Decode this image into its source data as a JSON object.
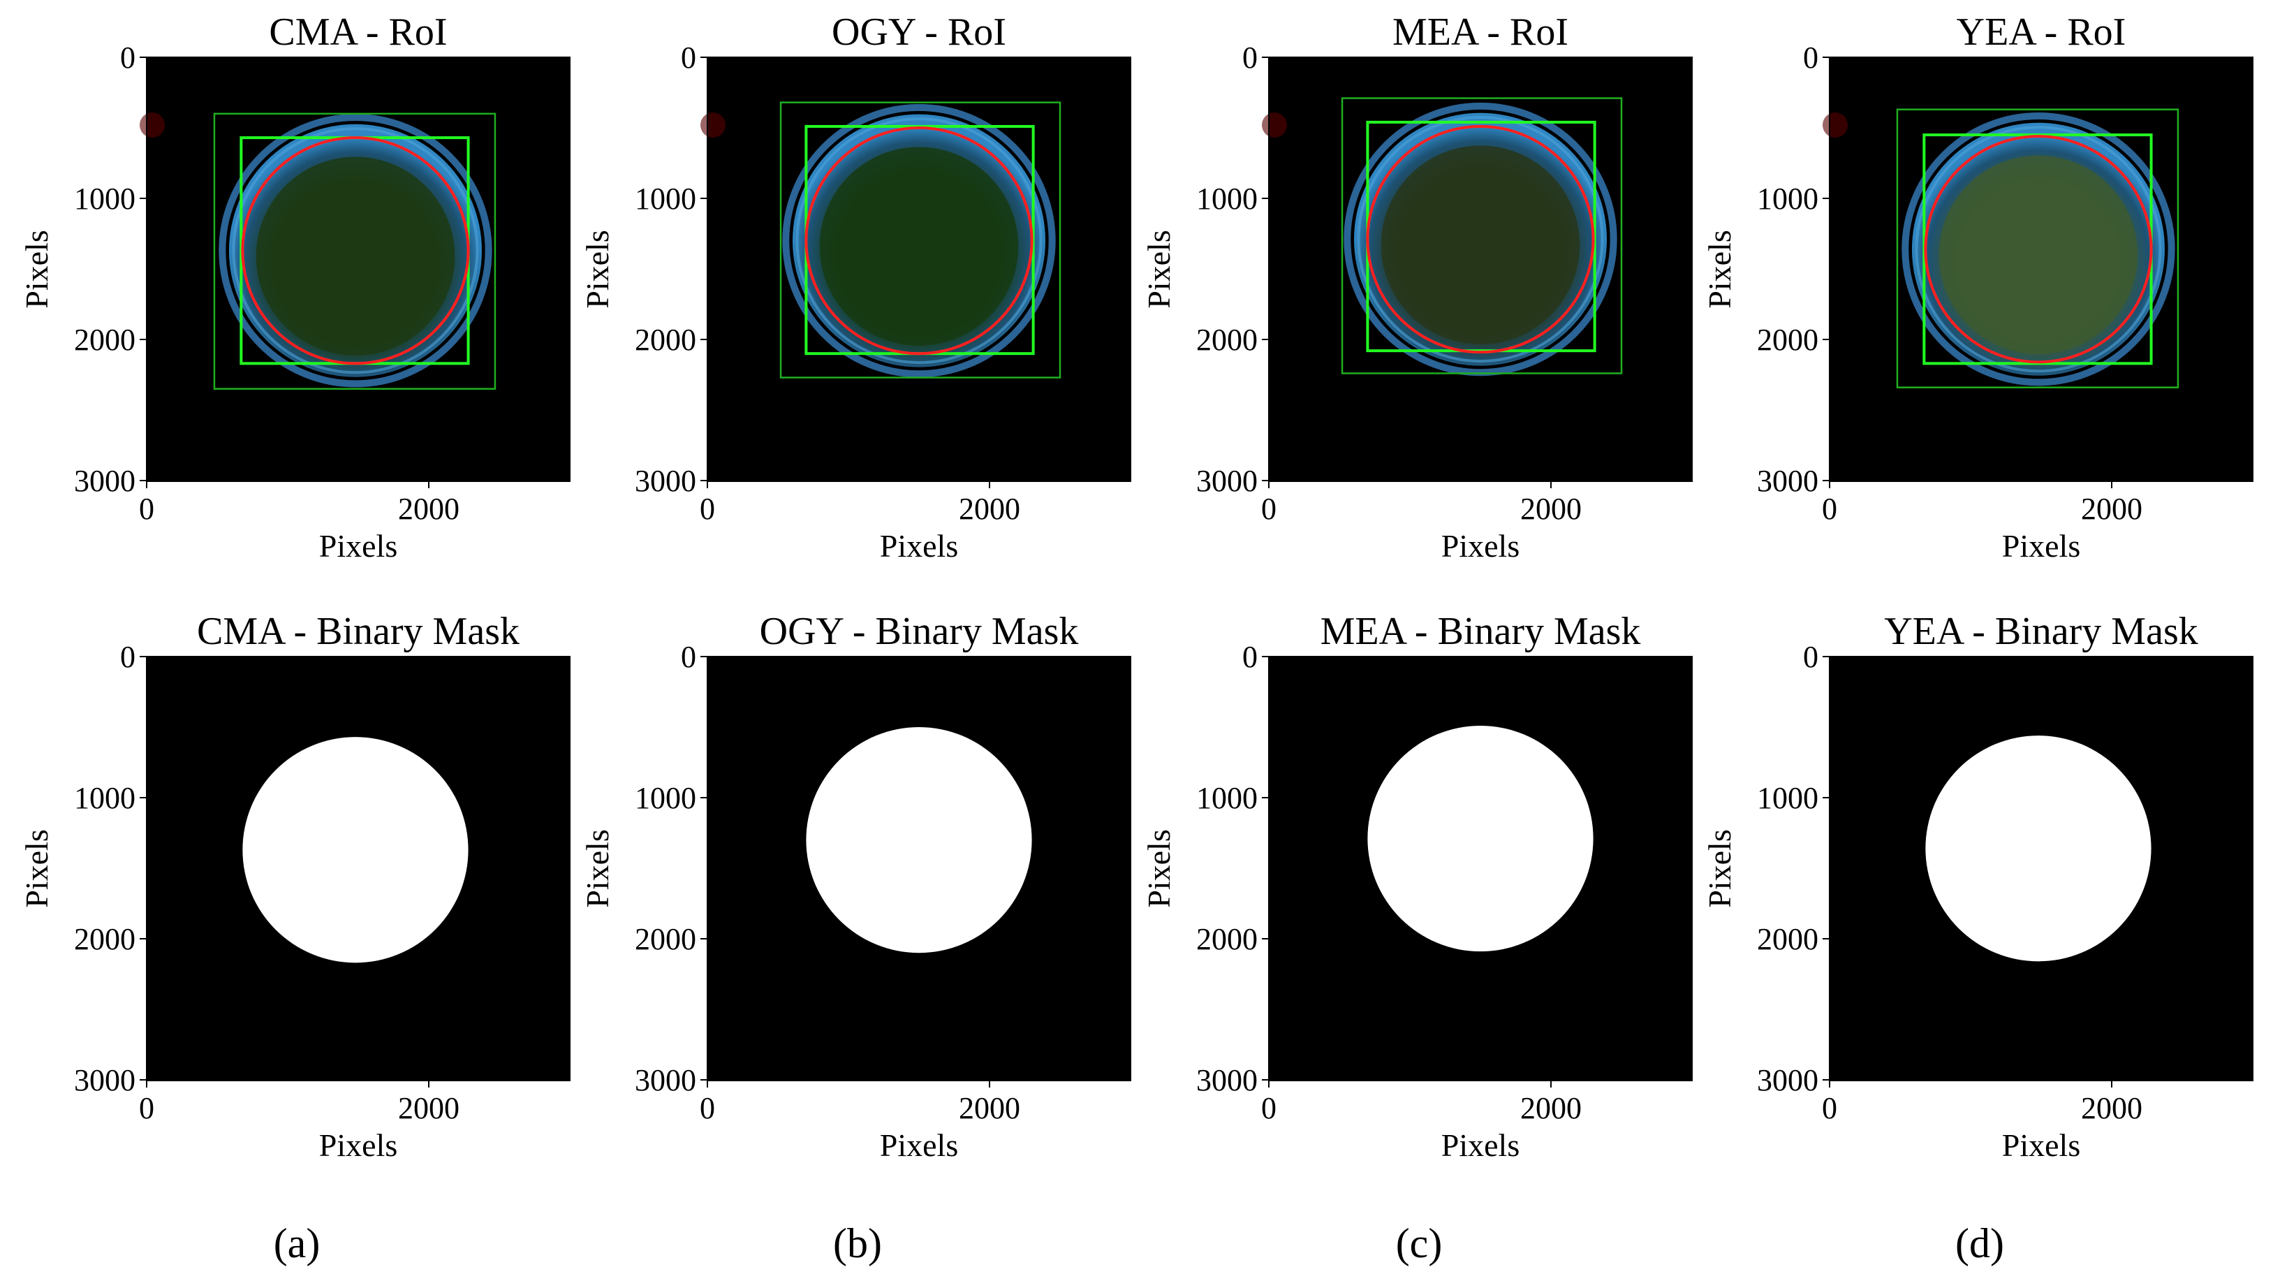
{
  "chart_data": {
    "type": "image_grid",
    "xlabel": "Pixels",
    "ylabel": "Pixels",
    "xlim": [
      0,
      3000
    ],
    "ylim": [
      3000,
      0
    ],
    "x_ticks": [
      0,
      2000
    ],
    "y_ticks": [
      0,
      1000,
      2000,
      3000
    ],
    "colors": {
      "outer_box": "#1fae1f",
      "inner_box": "#22ff22",
      "fitted_circle": "#ff2020",
      "plate_rim": "#3a86c8",
      "mask_fill": "#ffffff",
      "background": "#000000"
    },
    "panels": [
      {
        "label": "(a)",
        "roi_title": "CMA - RoI",
        "mask_title": "CMA - Binary Mask",
        "plate_tint": "#1c3a14",
        "circle": {
          "cx": 1480,
          "cy": 1370,
          "r": 800
        },
        "outer_box": [
          480,
          400,
          2470,
          2350
        ],
        "inner_box": [
          670,
          570,
          2280,
          2170
        ]
      },
      {
        "label": "(b)",
        "roi_title": "OGY - RoI",
        "mask_title": "OGY - Binary Mask",
        "plate_tint": "#163a12",
        "circle": {
          "cx": 1500,
          "cy": 1300,
          "r": 800
        },
        "outer_box": [
          520,
          320,
          2500,
          2270
        ],
        "inner_box": [
          700,
          490,
          2310,
          2100
        ]
      },
      {
        "label": "(c)",
        "roi_title": "MEA - RoI",
        "mask_title": "MEA - Binary Mask",
        "plate_tint": "#27361a",
        "circle": {
          "cx": 1500,
          "cy": 1290,
          "r": 800
        },
        "outer_box": [
          520,
          290,
          2500,
          2240
        ],
        "inner_box": [
          700,
          460,
          2310,
          2080
        ]
      },
      {
        "label": "(d)",
        "roi_title": "YEA - RoI",
        "mask_title": "YEA - Binary Mask",
        "plate_tint": "#3d5a30",
        "circle": {
          "cx": 1480,
          "cy": 1360,
          "r": 800
        },
        "outer_box": [
          480,
          370,
          2470,
          2340
        ],
        "inner_box": [
          670,
          550,
          2280,
          2170
        ]
      }
    ]
  }
}
